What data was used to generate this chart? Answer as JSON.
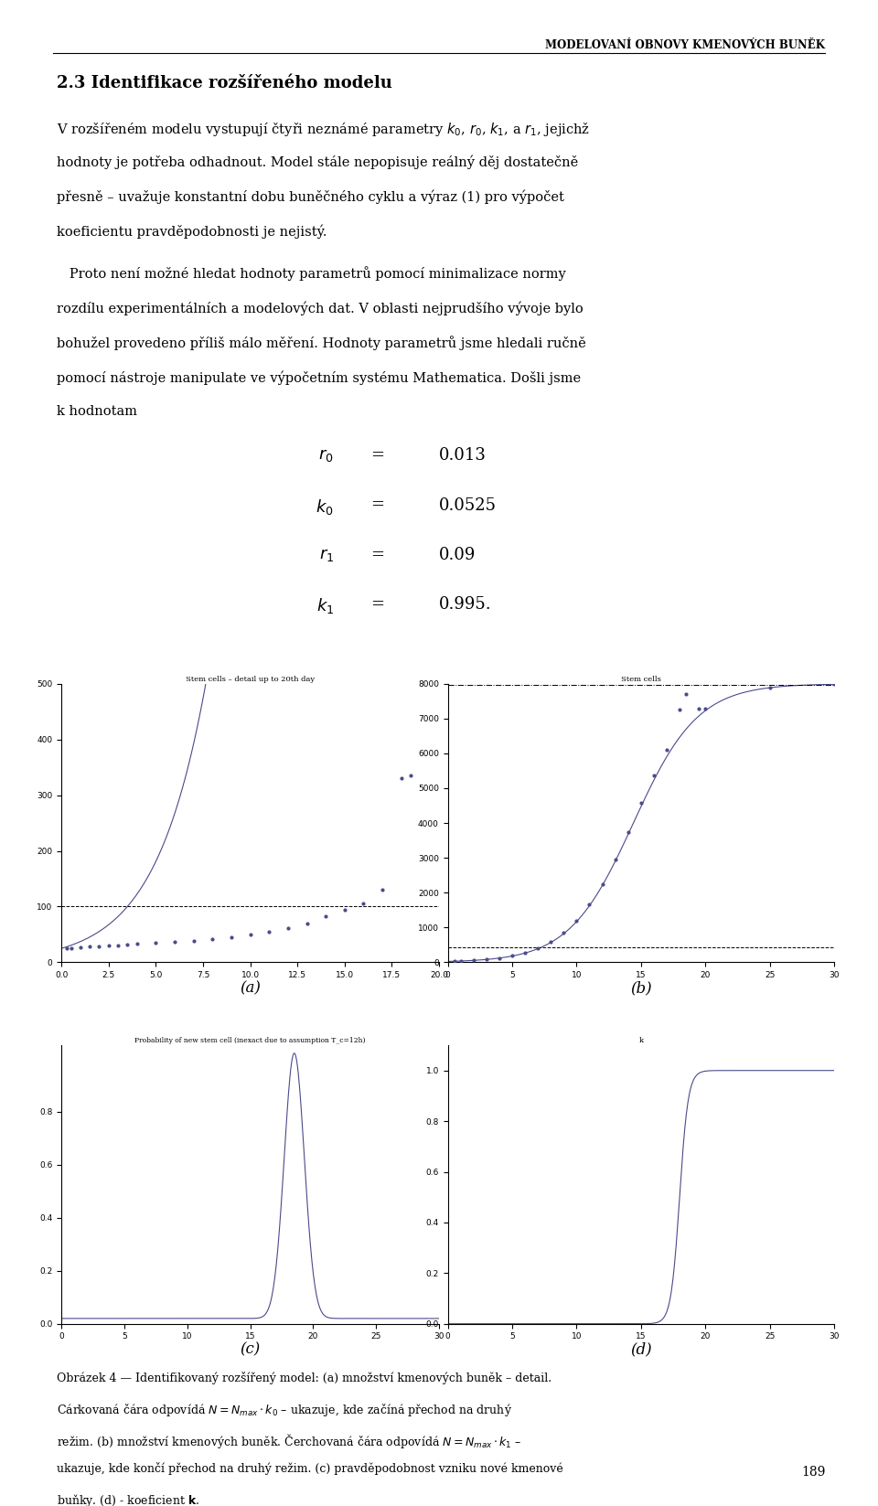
{
  "header": "MODELOVANÍ OBNOVY KMENOVÝCH BUNĚK",
  "section_title": "2.3 Identifikace rozšířeného modelu",
  "page_number": "189",
  "bg_color": "#ffffff",
  "text_color": "#000000",
  "line_color": "#4a4a8a",
  "dot_color": "#4a4a8a",
  "plot_a_title": "Stem cells – detail up to 20th day",
  "plot_b_title": "Stem cells",
  "plot_c_title": "Probability of new stem cell (inexact due to assumption T_c=12h)",
  "plot_d_title": "k"
}
